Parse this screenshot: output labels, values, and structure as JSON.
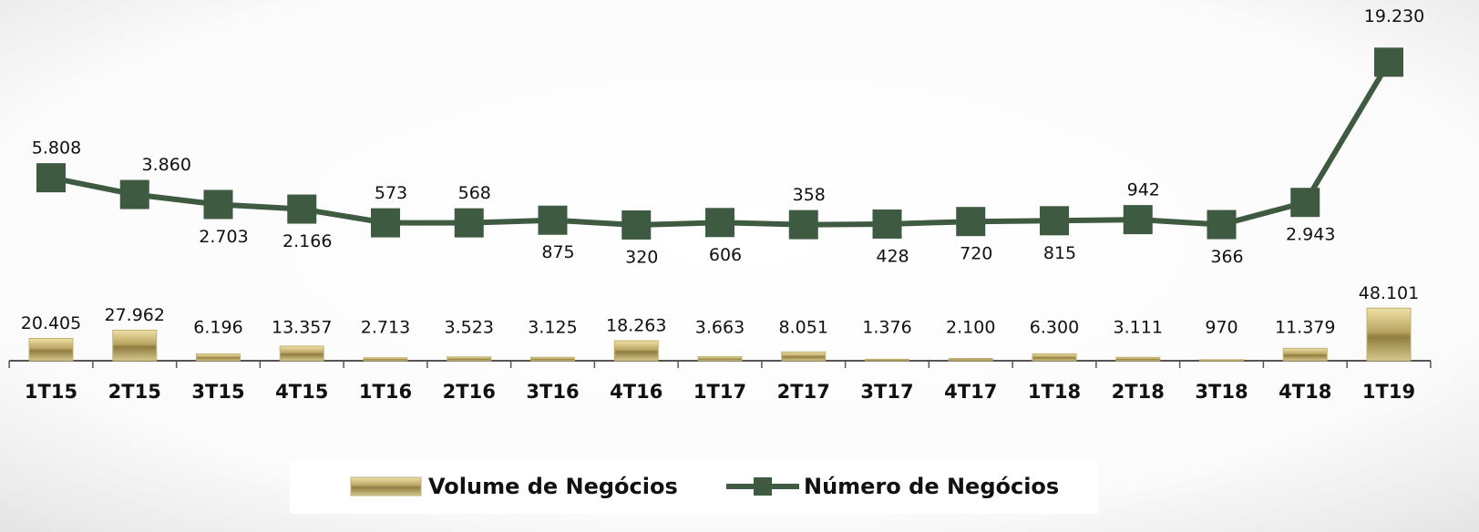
{
  "chart_data": {
    "type": "bar-line",
    "categories": [
      "1T15",
      "2T15",
      "3T15",
      "4T15",
      "1T16",
      "2T16",
      "3T16",
      "4T16",
      "1T17",
      "2T17",
      "3T17",
      "4T17",
      "1T18",
      "2T18",
      "3T18",
      "4T18",
      "1T19"
    ],
    "series": [
      {
        "name": "Volume de Negócios",
        "type": "bar",
        "color": "#c2b070",
        "values": [
          20405,
          27962,
          6196,
          13357,
          2713,
          3523,
          3125,
          18263,
          3663,
          8051,
          1376,
          2100,
          6300,
          3111,
          970,
          11379,
          48101
        ],
        "value_labels": [
          "20.405",
          "27.962",
          "6.196",
          "13.357",
          "2.713",
          "3.523",
          "3.125",
          "18.263",
          "3.663",
          "8.051",
          "1.376",
          "2.100",
          "6.300",
          "3.111",
          "970",
          "11.379",
          "48.101"
        ]
      },
      {
        "name": "Número de Negócios",
        "type": "line",
        "axis": "y2",
        "color": "#3e5a40",
        "values": [
          5808,
          3860,
          2703,
          2166,
          573,
          568,
          875,
          320,
          606,
          358,
          428,
          720,
          815,
          942,
          366,
          2943,
          19230
        ],
        "value_labels": [
          "5.808",
          "3.860",
          "2.703",
          "2.166",
          "573",
          "568",
          "875",
          "320",
          "606",
          "358",
          "428",
          "720",
          "815",
          "942",
          "366",
          "2.943",
          "19.230"
        ]
      }
    ],
    "ylim": [
      0,
      50000
    ],
    "y2lim": [
      0,
      20000
    ],
    "legend": "bottom"
  }
}
